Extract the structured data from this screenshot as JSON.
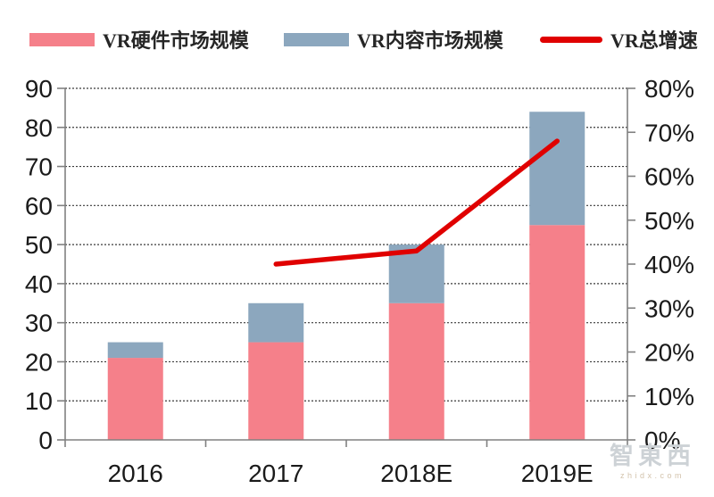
{
  "legend": {
    "items": [
      {
        "label": "VR硬件市场规模",
        "color": "#F5808A",
        "type": "box"
      },
      {
        "label": "VR内容市场规模",
        "color": "#8CA7BE",
        "type": "box"
      },
      {
        "label": "VR总增速",
        "color": "#E00000",
        "type": "line"
      }
    ]
  },
  "chart_data": {
    "type": "bar",
    "subtype": "stacked-bar-with-line-on-secondary-axis",
    "categories": [
      "2016",
      "2017",
      "2018E",
      "2019E"
    ],
    "series": [
      {
        "name": "VR硬件市场规模",
        "type": "bar",
        "stack": "market",
        "color": "#F5808A",
        "values": [
          21,
          25,
          35,
          55
        ]
      },
      {
        "name": "VR内容市场规模",
        "type": "bar",
        "stack": "market",
        "color": "#8CA7BE",
        "values": [
          4,
          10,
          15,
          29
        ]
      },
      {
        "name": "VR总增速",
        "type": "line",
        "axis": "right",
        "color": "#E00000",
        "values": [
          null,
          40,
          43,
          68
        ],
        "unit": "%"
      }
    ],
    "stacked_totals": [
      25,
      35,
      50,
      84
    ],
    "left_axis": {
      "min": 0,
      "max": 90,
      "step": 10,
      "tick_labels": [
        "0",
        "10",
        "20",
        "30",
        "40",
        "50",
        "60",
        "70",
        "80",
        "90"
      ]
    },
    "right_axis": {
      "min_pct": 0,
      "max_pct": 80,
      "step_pct": 10,
      "tick_labels": [
        "0%",
        "10%",
        "20%",
        "30%",
        "40%",
        "50%",
        "60%",
        "70%",
        "80%"
      ]
    },
    "grid": {
      "horizontal": true,
      "style": "dotted",
      "color": "#3a3a3a"
    },
    "axis_color": "#808080",
    "text_color": "#1a1a1a",
    "legend_position": "top"
  },
  "watermark": {
    "logo": "智東西",
    "site": "zhidx.com"
  }
}
